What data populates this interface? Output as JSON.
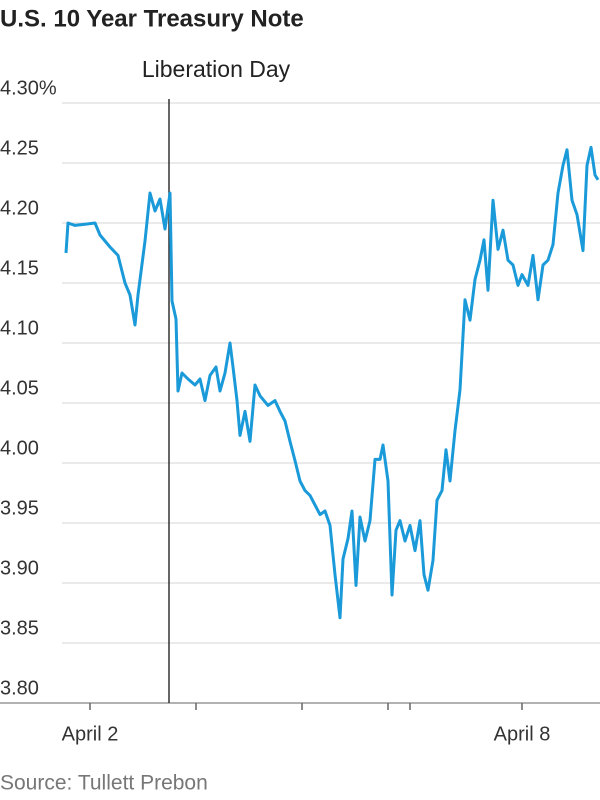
{
  "chart_data": {
    "type": "line",
    "title": "U.S. 10 Year Treasury Note",
    "source": "Source: Tullett Prebon",
    "annotation": {
      "text": "Liberation Day",
      "x": 169
    },
    "xlim": [
      0,
      600
    ],
    "xticks": [
      {
        "value": 90,
        "label": "April 2"
      },
      {
        "value": 196,
        "label": null
      },
      {
        "value": 302,
        "label": null
      },
      {
        "value": 388,
        "label": null
      },
      {
        "value": 410,
        "label": null
      },
      {
        "value": 522,
        "label": "April 8"
      }
    ],
    "ylim": [
      3.8,
      4.3
    ],
    "yticks": [
      {
        "value": 3.8,
        "label": "3.80"
      },
      {
        "value": 3.85,
        "label": "3.85"
      },
      {
        "value": 3.9,
        "label": "3.90"
      },
      {
        "value": 3.95,
        "label": "3.95"
      },
      {
        "value": 4.0,
        "label": "4.00"
      },
      {
        "value": 4.05,
        "label": "4.05"
      },
      {
        "value": 4.1,
        "label": "4.10"
      },
      {
        "value": 4.15,
        "label": "4.15"
      },
      {
        "value": 4.2,
        "label": "4.20"
      },
      {
        "value": 4.25,
        "label": "4.25"
      },
      {
        "value": 4.3,
        "label": "4.30%"
      }
    ],
    "grid": true,
    "color": "#1a9ad9",
    "x": [
      66,
      68,
      75,
      85,
      95,
      100,
      110,
      118,
      125,
      130,
      135,
      138,
      145,
      150,
      155,
      160,
      165,
      170,
      172,
      176,
      178,
      182,
      188,
      195,
      200,
      205,
      210,
      216,
      220,
      225,
      230,
      233,
      237,
      240,
      245,
      250,
      255,
      260,
      268,
      275,
      280,
      285,
      290,
      295,
      300,
      305,
      310,
      315,
      320,
      325,
      330,
      335,
      340,
      343,
      348,
      352,
      356,
      360,
      365,
      370,
      375,
      380,
      383,
      388,
      392,
      396,
      400,
      405,
      410,
      415,
      420,
      424,
      428,
      433,
      437,
      442,
      446,
      450,
      455,
      460,
      465,
      470,
      475,
      480,
      484,
      488,
      493,
      498,
      503,
      508,
      513,
      518,
      522,
      528,
      533,
      538,
      543,
      548,
      553,
      558,
      563,
      567,
      572,
      577,
      583,
      587,
      591,
      595,
      598
    ],
    "values": [
      4.175,
      4.2,
      4.198,
      4.199,
      4.2,
      4.19,
      4.18,
      4.173,
      4.15,
      4.14,
      4.115,
      4.14,
      4.185,
      4.225,
      4.21,
      4.22,
      4.195,
      4.225,
      4.135,
      4.12,
      4.06,
      4.075,
      4.07,
      4.065,
      4.07,
      4.052,
      4.073,
      4.08,
      4.06,
      4.075,
      4.1,
      4.08,
      4.052,
      4.023,
      4.043,
      4.018,
      4.065,
      4.056,
      4.048,
      4.052,
      4.043,
      4.035,
      4.018,
      4.002,
      3.985,
      3.977,
      3.973,
      3.965,
      3.957,
      3.96,
      3.948,
      3.907,
      3.871,
      3.92,
      3.937,
      3.96,
      3.898,
      3.955,
      3.935,
      3.952,
      4.003,
      4.003,
      4.015,
      3.985,
      3.89,
      3.944,
      3.952,
      3.935,
      3.948,
      3.927,
      3.952,
      3.907,
      3.894,
      3.919,
      3.969,
      3.977,
      4.011,
      3.985,
      4.027,
      4.061,
      4.136,
      4.119,
      4.153,
      4.169,
      4.186,
      4.144,
      4.219,
      4.178,
      4.194,
      4.169,
      4.165,
      4.148,
      4.157,
      4.148,
      4.173,
      4.136,
      4.165,
      4.169,
      4.182,
      4.225,
      4.248,
      4.261,
      4.219,
      4.207,
      4.177,
      4.248,
      4.263,
      4.24,
      4.236
    ]
  }
}
